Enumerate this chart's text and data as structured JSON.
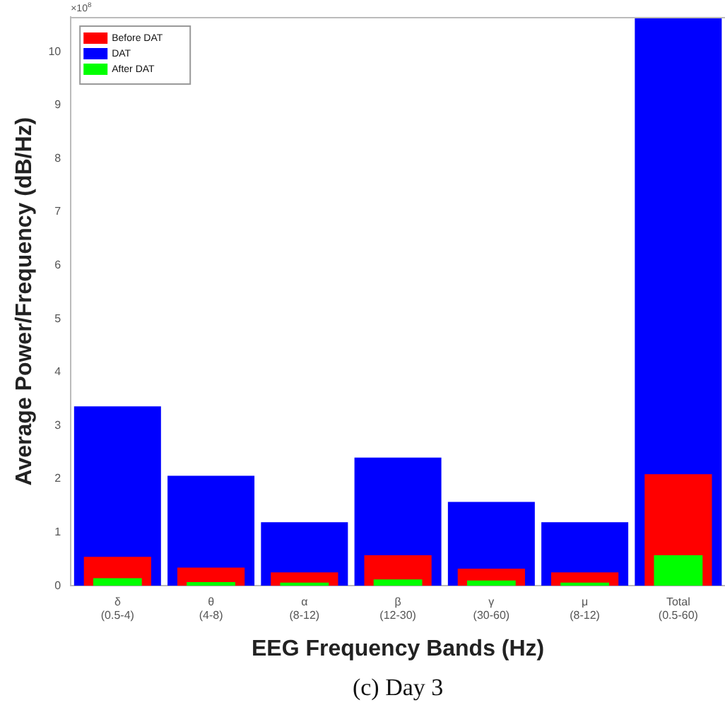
{
  "chart_data": {
    "type": "bar",
    "categories": [
      "δ\n(0.5-4)",
      "θ\n(4-8)",
      "α\n(8-12)",
      "β\n(12-30)",
      "γ\n(30-60)",
      "μ\n(8-12)",
      "Total\n(0.5-60)"
    ],
    "series": [
      {
        "name": "Before DAT",
        "color": "#ff0000",
        "values": [
          0.54,
          0.34,
          0.25,
          0.57,
          0.32,
          0.25,
          2.09
        ]
      },
      {
        "name": "DAT",
        "color": "#0000ff",
        "values": [
          3.36,
          2.06,
          1.19,
          2.4,
          1.57,
          1.19,
          10.65
        ]
      },
      {
        "name": "After DAT",
        "color": "#00ff00",
        "values": [
          0.14,
          0.07,
          0.06,
          0.12,
          0.1,
          0.06,
          0.57
        ]
      }
    ],
    "xlabel": "EEG Frequency Bands (Hz)",
    "ylabel": "Average Power/Frequency (dB/Hz)",
    "ylim": [
      0,
      10.65
    ],
    "yticks": [
      0,
      1,
      2,
      3,
      4,
      5,
      6,
      7,
      8,
      9,
      10
    ],
    "annotations": [
      "×10$^{8}$",
      "(c) Day 3"
    ],
    "legend": "top left",
    "grid": false
  }
}
